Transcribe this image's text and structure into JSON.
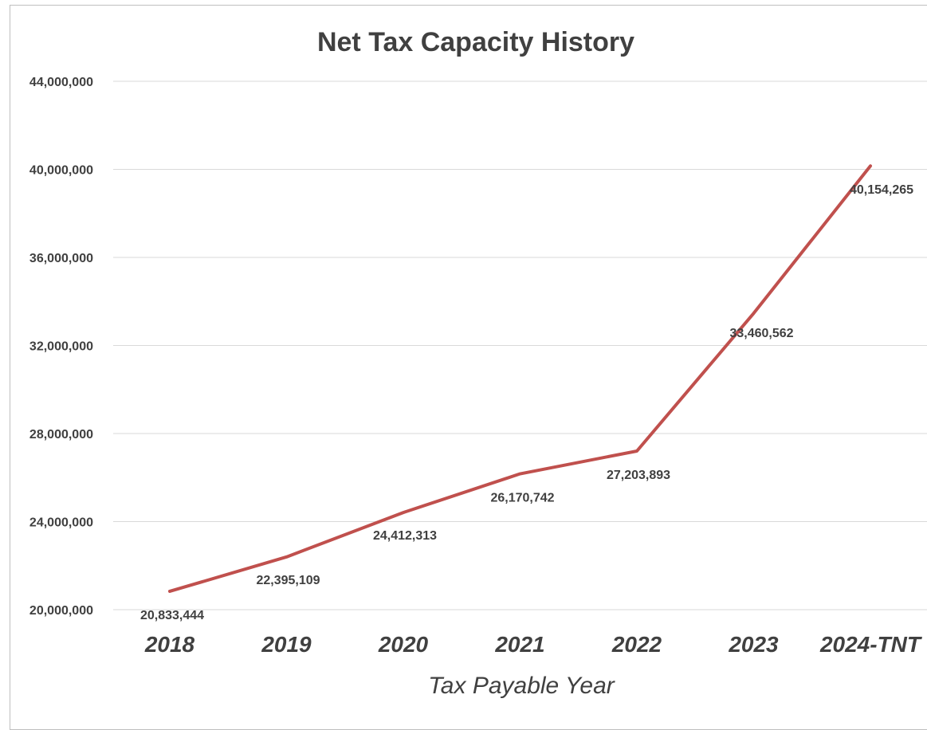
{
  "chart_data": {
    "type": "line",
    "title": "Net Tax Capacity History",
    "xlabel": "Tax Payable Year",
    "ylabel": "",
    "categories": [
      "2018",
      "2019",
      "2020",
      "2021",
      "2022",
      "2023",
      "2024-TNT"
    ],
    "series": [
      {
        "values": [
          20833444,
          22395109,
          24412313,
          26170742,
          27203893,
          33460562,
          40154265
        ],
        "labels": [
          "20,833,444",
          "22,395,109",
          "24,412,313",
          "26,170,742",
          "27,203,893",
          "33,460,562",
          "40,154,265"
        ],
        "color": "#c0504d"
      }
    ],
    "ylim": [
      20000000,
      44000000
    ],
    "yticks": [
      20000000,
      24000000,
      28000000,
      32000000,
      36000000,
      40000000,
      44000000
    ],
    "ytick_labels": [
      "20,000,000",
      "24,000,000",
      "28,000,000",
      "32,000,000",
      "36,000,000",
      "40,000,000",
      "44,000,000"
    ],
    "grid": true,
    "legend": "none"
  }
}
